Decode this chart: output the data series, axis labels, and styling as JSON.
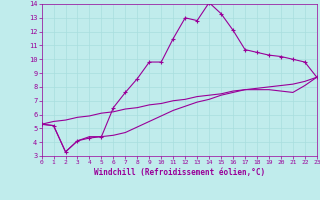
{
  "xlabel": "Windchill (Refroidissement éolien,°C)",
  "background_color": "#c0ecec",
  "line_color": "#990099",
  "xlim": [
    0,
    23
  ],
  "ylim": [
    3,
    14
  ],
  "xticks": [
    0,
    1,
    2,
    3,
    4,
    5,
    6,
    7,
    8,
    9,
    10,
    11,
    12,
    13,
    14,
    15,
    16,
    17,
    18,
    19,
    20,
    21,
    22,
    23
  ],
  "yticks": [
    3,
    4,
    5,
    6,
    7,
    8,
    9,
    10,
    11,
    12,
    13,
    14
  ],
  "grid_color": "#a8dede",
  "line1_x": [
    0,
    1,
    2,
    3,
    4,
    5,
    6,
    7,
    8,
    9,
    10,
    11,
    12,
    13,
    14,
    15,
    16,
    17,
    18,
    19,
    20,
    21,
    22,
    23
  ],
  "line1_y": [
    5.3,
    5.2,
    3.3,
    4.1,
    4.3,
    4.4,
    6.5,
    7.6,
    8.6,
    9.8,
    9.8,
    11.5,
    13.0,
    12.8,
    14.1,
    13.3,
    12.1,
    10.7,
    10.5,
    10.3,
    10.2,
    10.0,
    9.8,
    8.7
  ],
  "line2_x": [
    0,
    1,
    2,
    3,
    4,
    5,
    6,
    7,
    8,
    9,
    10,
    11,
    12,
    13,
    14,
    15,
    16,
    17,
    18,
    19,
    20,
    21,
    22,
    23
  ],
  "line2_y": [
    5.3,
    5.5,
    5.6,
    5.8,
    5.9,
    6.1,
    6.2,
    6.4,
    6.5,
    6.7,
    6.8,
    7.0,
    7.1,
    7.3,
    7.4,
    7.5,
    7.7,
    7.8,
    7.9,
    8.0,
    8.1,
    8.2,
    8.4,
    8.7
  ],
  "line3_x": [
    0,
    1,
    2,
    3,
    4,
    5,
    6,
    7,
    8,
    9,
    10,
    11,
    12,
    13,
    14,
    15,
    16,
    17,
    18,
    19,
    20,
    21,
    22,
    23
  ],
  "line3_y": [
    5.3,
    5.2,
    3.3,
    4.1,
    4.4,
    4.4,
    4.5,
    4.7,
    5.1,
    5.5,
    5.9,
    6.3,
    6.6,
    6.9,
    7.1,
    7.4,
    7.6,
    7.8,
    7.8,
    7.8,
    7.7,
    7.6,
    8.1,
    8.7
  ]
}
